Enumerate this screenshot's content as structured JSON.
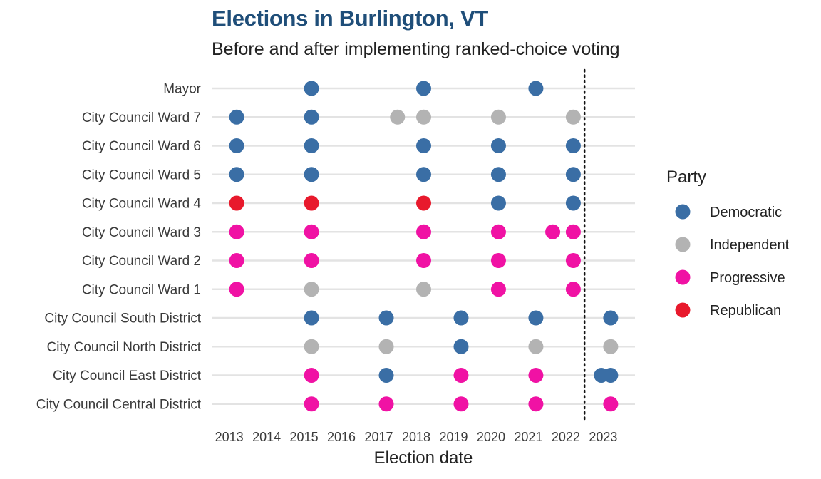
{
  "chart_data": {
    "type": "scatter",
    "title": "Elections in Burlington, VT",
    "subtitle": "Before and after implementing ranked-choice voting",
    "xlabel": "Election date",
    "ylabel": "",
    "xlim": [
      2012.55,
      2023.85
    ],
    "x_ticks": [
      "2013",
      "2014",
      "2015",
      "2016",
      "2017",
      "2018",
      "2019",
      "2020",
      "2021",
      "2022",
      "2023"
    ],
    "reference_line_x": 2022.5,
    "grid": "horizontal",
    "legend": {
      "title": "Party",
      "position": "right",
      "entries": [
        {
          "name": "Democratic",
          "color": "#3a6ea5"
        },
        {
          "name": "Independent",
          "color": "#b3b3b3"
        },
        {
          "name": "Progressive",
          "color": "#f012a4"
        },
        {
          "name": "Republican",
          "color": "#e8192c"
        }
      ]
    },
    "categories": [
      "Mayor",
      "City Council Ward 7",
      "City Council Ward 6",
      "City Council Ward 5",
      "City Council Ward 4",
      "City Council Ward 3",
      "City Council Ward 2",
      "City Council Ward 1",
      "City Council South District",
      "City Council North District",
      "City Council East District",
      "City Council Central District"
    ],
    "points": [
      {
        "row": "Mayor",
        "x": 2015.2,
        "party": "Democratic"
      },
      {
        "row": "Mayor",
        "x": 2018.2,
        "party": "Democratic"
      },
      {
        "row": "Mayor",
        "x": 2021.2,
        "party": "Democratic"
      },
      {
        "row": "City Council Ward 7",
        "x": 2013.2,
        "party": "Democratic"
      },
      {
        "row": "City Council Ward 7",
        "x": 2015.2,
        "party": "Democratic"
      },
      {
        "row": "City Council Ward 7",
        "x": 2017.5,
        "party": "Independent"
      },
      {
        "row": "City Council Ward 7",
        "x": 2018.2,
        "party": "Independent"
      },
      {
        "row": "City Council Ward 7",
        "x": 2020.2,
        "party": "Independent"
      },
      {
        "row": "City Council Ward 7",
        "x": 2022.2,
        "party": "Independent"
      },
      {
        "row": "City Council Ward 6",
        "x": 2013.2,
        "party": "Democratic"
      },
      {
        "row": "City Council Ward 6",
        "x": 2015.2,
        "party": "Democratic"
      },
      {
        "row": "City Council Ward 6",
        "x": 2018.2,
        "party": "Democratic"
      },
      {
        "row": "City Council Ward 6",
        "x": 2020.2,
        "party": "Democratic"
      },
      {
        "row": "City Council Ward 6",
        "x": 2022.2,
        "party": "Democratic"
      },
      {
        "row": "City Council Ward 5",
        "x": 2013.2,
        "party": "Democratic"
      },
      {
        "row": "City Council Ward 5",
        "x": 2015.2,
        "party": "Democratic"
      },
      {
        "row": "City Council Ward 5",
        "x": 2018.2,
        "party": "Democratic"
      },
      {
        "row": "City Council Ward 5",
        "x": 2020.2,
        "party": "Democratic"
      },
      {
        "row": "City Council Ward 5",
        "x": 2022.2,
        "party": "Democratic"
      },
      {
        "row": "City Council Ward 4",
        "x": 2013.2,
        "party": "Republican"
      },
      {
        "row": "City Council Ward 4",
        "x": 2015.2,
        "party": "Republican"
      },
      {
        "row": "City Council Ward 4",
        "x": 2018.2,
        "party": "Republican"
      },
      {
        "row": "City Council Ward 4",
        "x": 2020.2,
        "party": "Democratic"
      },
      {
        "row": "City Council Ward 4",
        "x": 2022.2,
        "party": "Democratic"
      },
      {
        "row": "City Council Ward 3",
        "x": 2013.2,
        "party": "Progressive"
      },
      {
        "row": "City Council Ward 3",
        "x": 2015.2,
        "party": "Progressive"
      },
      {
        "row": "City Council Ward 3",
        "x": 2018.2,
        "party": "Progressive"
      },
      {
        "row": "City Council Ward 3",
        "x": 2020.2,
        "party": "Progressive"
      },
      {
        "row": "City Council Ward 3",
        "x": 2021.65,
        "party": "Progressive"
      },
      {
        "row": "City Council Ward 3",
        "x": 2022.2,
        "party": "Progressive"
      },
      {
        "row": "City Council Ward 2",
        "x": 2013.2,
        "party": "Progressive"
      },
      {
        "row": "City Council Ward 2",
        "x": 2015.2,
        "party": "Progressive"
      },
      {
        "row": "City Council Ward 2",
        "x": 2018.2,
        "party": "Progressive"
      },
      {
        "row": "City Council Ward 2",
        "x": 2020.2,
        "party": "Progressive"
      },
      {
        "row": "City Council Ward 2",
        "x": 2022.2,
        "party": "Progressive"
      },
      {
        "row": "City Council Ward 1",
        "x": 2013.2,
        "party": "Progressive"
      },
      {
        "row": "City Council Ward 1",
        "x": 2015.2,
        "party": "Independent"
      },
      {
        "row": "City Council Ward 1",
        "x": 2018.2,
        "party": "Independent"
      },
      {
        "row": "City Council Ward 1",
        "x": 2020.2,
        "party": "Progressive"
      },
      {
        "row": "City Council Ward 1",
        "x": 2022.2,
        "party": "Progressive"
      },
      {
        "row": "City Council South District",
        "x": 2015.2,
        "party": "Democratic"
      },
      {
        "row": "City Council South District",
        "x": 2017.2,
        "party": "Democratic"
      },
      {
        "row": "City Council South District",
        "x": 2019.2,
        "party": "Democratic"
      },
      {
        "row": "City Council South District",
        "x": 2021.2,
        "party": "Democratic"
      },
      {
        "row": "City Council South District",
        "x": 2023.2,
        "party": "Democratic"
      },
      {
        "row": "City Council North District",
        "x": 2015.2,
        "party": "Independent"
      },
      {
        "row": "City Council North District",
        "x": 2017.2,
        "party": "Independent"
      },
      {
        "row": "City Council North District",
        "x": 2019.2,
        "party": "Democratic"
      },
      {
        "row": "City Council North District",
        "x": 2021.2,
        "party": "Independent"
      },
      {
        "row": "City Council North District",
        "x": 2023.2,
        "party": "Independent"
      },
      {
        "row": "City Council East District",
        "x": 2015.2,
        "party": "Progressive"
      },
      {
        "row": "City Council East District",
        "x": 2017.2,
        "party": "Democratic"
      },
      {
        "row": "City Council East District",
        "x": 2019.2,
        "party": "Progressive"
      },
      {
        "row": "City Council East District",
        "x": 2021.2,
        "party": "Progressive"
      },
      {
        "row": "City Council East District",
        "x": 2022.95,
        "party": "Democratic"
      },
      {
        "row": "City Council East District",
        "x": 2023.2,
        "party": "Democratic"
      },
      {
        "row": "City Council Central District",
        "x": 2015.2,
        "party": "Progressive"
      },
      {
        "row": "City Council Central District",
        "x": 2017.2,
        "party": "Progressive"
      },
      {
        "row": "City Council Central District",
        "x": 2019.2,
        "party": "Progressive"
      },
      {
        "row": "City Council Central District",
        "x": 2021.2,
        "party": "Progressive"
      },
      {
        "row": "City Council Central District",
        "x": 2023.2,
        "party": "Progressive"
      }
    ]
  }
}
